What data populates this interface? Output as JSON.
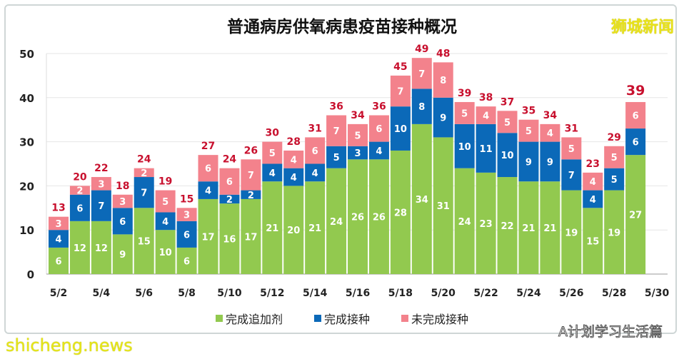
{
  "chart_data": {
    "type": "bar",
    "stacked": true,
    "title": "普通病房供氧病患疫苗接种概况",
    "categories": [
      "5/2",
      "5/3",
      "5/4",
      "5/5",
      "5/6",
      "5/7",
      "5/8",
      "5/9",
      "5/10",
      "5/11",
      "5/12",
      "5/13",
      "5/14",
      "5/15",
      "5/16",
      "5/17",
      "5/18",
      "5/19",
      "5/20",
      "5/21",
      "5/22",
      "5/23",
      "5/24",
      "5/25",
      "5/26",
      "5/27",
      "5/28",
      "5/29",
      "5/30"
    ],
    "tick_labels": [
      "5/2",
      "5/4",
      "5/6",
      "5/8",
      "5/10",
      "5/12",
      "5/14",
      "5/16",
      "5/18",
      "5/20",
      "5/22",
      "5/24",
      "5/26",
      "5/28",
      "5/30"
    ],
    "series": [
      {
        "name": "完成追加剂",
        "color": "#92c94f",
        "values": [
          6,
          12,
          12,
          9,
          15,
          10,
          6,
          17,
          16,
          17,
          21,
          20,
          21,
          24,
          26,
          26,
          28,
          34,
          31,
          24,
          23,
          22,
          21,
          21,
          19,
          15,
          19,
          27,
          null
        ]
      },
      {
        "name": "完成接种",
        "color": "#0b69b8",
        "values": [
          4,
          6,
          7,
          6,
          7,
          4,
          6,
          4,
          2,
          2,
          4,
          4,
          4,
          5,
          3,
          4,
          10,
          8,
          9,
          10,
          11,
          10,
          9,
          9,
          7,
          4,
          5,
          6,
          null
        ]
      },
      {
        "name": "未完成接种",
        "color": "#f3828c",
        "values": [
          3,
          2,
          3,
          3,
          2,
          5,
          3,
          6,
          6,
          7,
          5,
          4,
          6,
          7,
          5,
          6,
          7,
          7,
          8,
          5,
          4,
          5,
          5,
          4,
          5,
          4,
          5,
          6,
          null
        ]
      }
    ],
    "totals": [
      13,
      20,
      22,
      18,
      24,
      19,
      15,
      27,
      24,
      26,
      30,
      28,
      31,
      36,
      34,
      36,
      45,
      49,
      48,
      39,
      38,
      37,
      35,
      34,
      31,
      23,
      29,
      39,
      null
    ],
    "ylim": [
      0,
      50
    ],
    "yticks": [
      0,
      10,
      20,
      30,
      40,
      50
    ],
    "grid": true,
    "legend": "bottom",
    "total_label_color": "#c8102e"
  },
  "logo": "狮城新闻",
  "watermark": "shicheng.news",
  "source_account": "A计划学习生活篇"
}
